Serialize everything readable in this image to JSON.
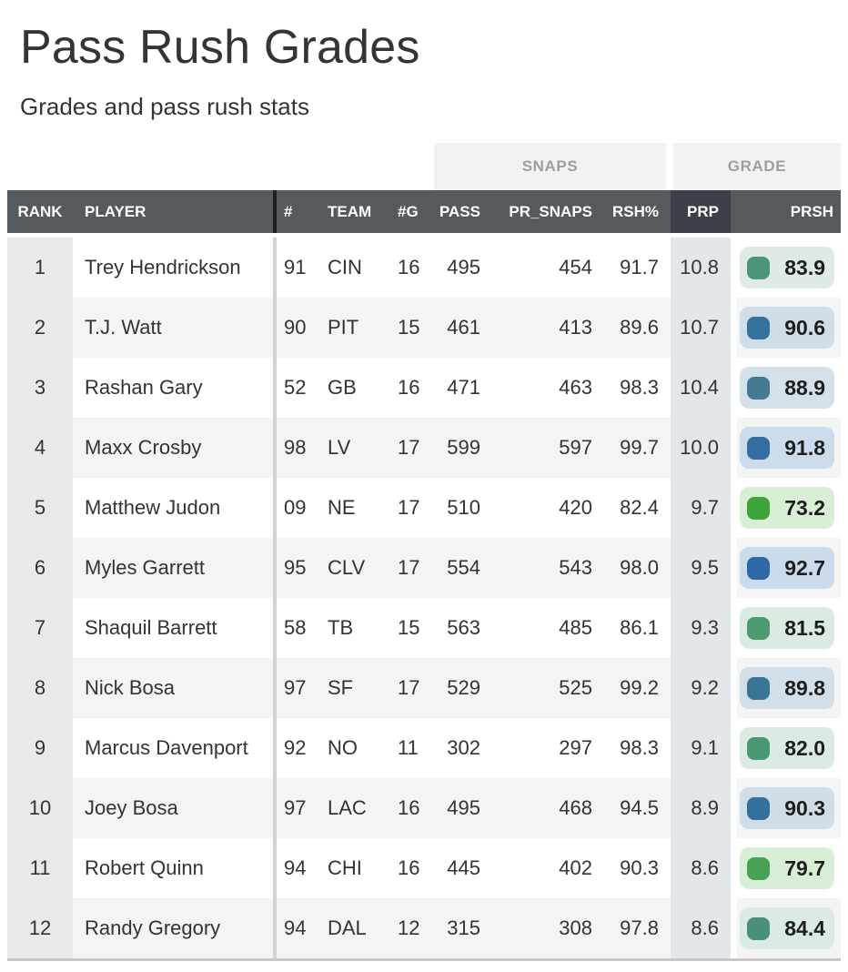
{
  "page": {
    "title": "Pass Rush Grades",
    "subtitle": "Grades and pass rush stats"
  },
  "table": {
    "group_headers": {
      "snaps": "SNAPS",
      "grade": "GRADE"
    },
    "columns": {
      "rank": "RANK",
      "player": "PLAYER",
      "jersey": "#",
      "team": "TEAM",
      "games": "#G",
      "pass": "PASS",
      "pr_snaps": "PR_SNAPS",
      "rsh_pct": "RSH%",
      "prp": "PRP",
      "prsh": "PRSH"
    },
    "rows": [
      {
        "rank": "1",
        "player": "Trey Hendrickson",
        "jersey": "91",
        "team": "CIN",
        "games": "16",
        "pass": "495",
        "pr_snaps": "454",
        "rsh_pct": "91.7",
        "prp": "10.8",
        "prsh": "83.9",
        "grade_color": "#4c9478",
        "grade_bg": "#dfeae4"
      },
      {
        "rank": "2",
        "player": "T.J. Watt",
        "jersey": "90",
        "team": "PIT",
        "games": "15",
        "pass": "461",
        "pr_snaps": "413",
        "rsh_pct": "89.6",
        "prp": "10.7",
        "prsh": "90.6",
        "grade_color": "#35719b",
        "grade_bg": "#cfdde9"
      },
      {
        "rank": "3",
        "player": "Rashan Gary",
        "jersey": "52",
        "team": "GB",
        "games": "16",
        "pass": "471",
        "pr_snaps": "463",
        "rsh_pct": "98.3",
        "prp": "10.4",
        "prsh": "88.9",
        "grade_color": "#437a92",
        "grade_bg": "#d5e1e8"
      },
      {
        "rank": "4",
        "player": "Maxx Crosby",
        "jersey": "98",
        "team": "LV",
        "games": "17",
        "pass": "599",
        "pr_snaps": "597",
        "rsh_pct": "99.7",
        "prp": "10.0",
        "prsh": "91.8",
        "grade_color": "#336da1",
        "grade_bg": "#cddcea"
      },
      {
        "rank": "5",
        "player": "Matthew Judon",
        "jersey": "09",
        "team": "NE",
        "games": "17",
        "pass": "510",
        "pr_snaps": "420",
        "rsh_pct": "82.4",
        "prp": "9.7",
        "prsh": "73.2",
        "grade_color": "#3fa33c",
        "grade_bg": "#d9efd5"
      },
      {
        "rank": "6",
        "player": "Myles Garrett",
        "jersey": "95",
        "team": "CLV",
        "games": "17",
        "pass": "554",
        "pr_snaps": "543",
        "rsh_pct": "98.0",
        "prp": "9.5",
        "prsh": "92.7",
        "grade_color": "#2d68a7",
        "grade_bg": "#cbdbec"
      },
      {
        "rank": "7",
        "player": "Shaquil Barrett",
        "jersey": "58",
        "team": "TB",
        "games": "15",
        "pass": "563",
        "pr_snaps": "485",
        "rsh_pct": "86.1",
        "prp": "9.3",
        "prsh": "81.5",
        "grade_color": "#4b9a70",
        "grade_bg": "#dcebe1"
      },
      {
        "rank": "8",
        "player": "Nick Bosa",
        "jersey": "97",
        "team": "SF",
        "games": "17",
        "pass": "529",
        "pr_snaps": "525",
        "rsh_pct": "99.2",
        "prp": "9.2",
        "prsh": "89.8",
        "grade_color": "#3b7595",
        "grade_bg": "#d2dfe8"
      },
      {
        "rank": "9",
        "player": "Marcus Davenport",
        "jersey": "92",
        "team": "NO",
        "games": "11",
        "pass": "302",
        "pr_snaps": "297",
        "rsh_pct": "98.3",
        "prp": "9.1",
        "prsh": "82.0",
        "grade_color": "#4a9873",
        "grade_bg": "#dbeae2"
      },
      {
        "rank": "10",
        "player": "Joey Bosa",
        "jersey": "97",
        "team": "LAC",
        "games": "16",
        "pass": "495",
        "pr_snaps": "468",
        "rsh_pct": "94.5",
        "prp": "8.9",
        "prsh": "90.3",
        "grade_color": "#35709c",
        "grade_bg": "#cfdde9"
      },
      {
        "rank": "11",
        "player": "Robert Quinn",
        "jersey": "94",
        "team": "CHI",
        "games": "16",
        "pass": "445",
        "pr_snaps": "402",
        "rsh_pct": "90.3",
        "prp": "8.6",
        "prsh": "79.7",
        "grade_color": "#47a054",
        "grade_bg": "#d9eed6"
      },
      {
        "rank": "12",
        "player": "Randy Gregory",
        "jersey": "94",
        "team": "DAL",
        "games": "12",
        "pass": "315",
        "pr_snaps": "308",
        "rsh_pct": "97.8",
        "prp": "8.6",
        "prsh": "84.4",
        "grade_color": "#4a8e7d",
        "grade_bg": "#dbeae5"
      }
    ],
    "theme": {
      "header_bg": "#555a5f",
      "header_prp_bg": "#3c4046",
      "header_text": "#ffffff",
      "group_box_bg": "#f2f2f2",
      "group_text": "#9b9ea3",
      "rank_col_bg": "#e7e9eb",
      "prp_col_bg": "#e4e7ea",
      "row_alt_bg": "#f4f4f4",
      "divider_header": "#1d1f22",
      "divider_body": "#d3d3d3",
      "table_bottom_border": "#c8c8c8",
      "text": "#333333",
      "text_strong": "#343434"
    }
  }
}
